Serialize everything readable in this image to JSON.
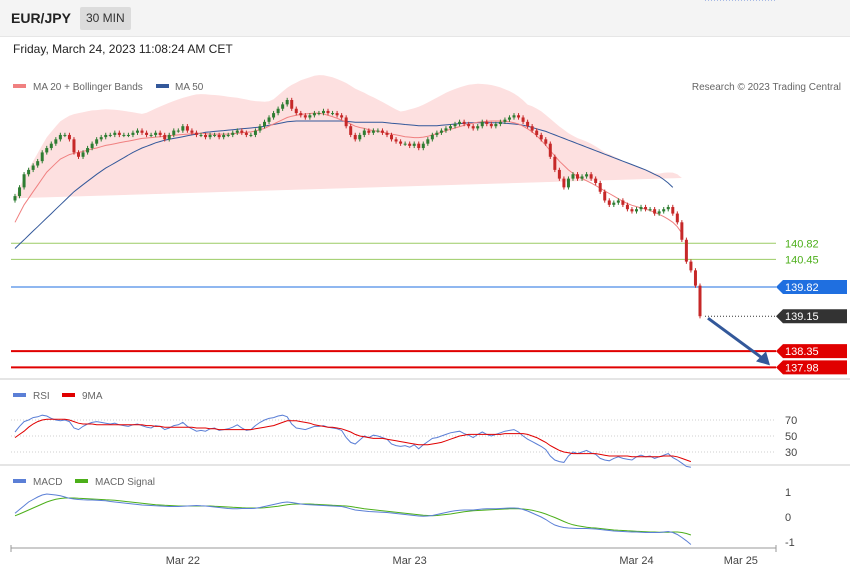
{
  "header": {
    "pair": "EUR/JPY",
    "timeframe": "30 MIN"
  },
  "date_line": "Friday, March 24, 2023 11:08:24 AM CET",
  "credit": "Research © 2023 Trading Central",
  "legend": {
    "main": [
      "MA 20 + Bollinger Bands",
      "MA 50"
    ],
    "rsi": [
      "RSI",
      "9MA"
    ],
    "macd": [
      "MACD",
      "MACD Signal"
    ]
  },
  "colors": {
    "bull": "#2e7d32",
    "bear": "#c62828",
    "ma20": "#f08080",
    "ma50": "#33589a",
    "bband": "#fde0e0",
    "pivot": "#1f6fe0",
    "support": "#e00000",
    "resistance_line": "#9ccc65",
    "resistance_text": "#4caf1a",
    "last": "#333333",
    "rsi": "#5b7fd6",
    "rsi_ma": "#e00000",
    "macd": "#5b7fd6",
    "macd_signal": "#4caf1a"
  },
  "price_levels": [
    {
      "label": "140.82",
      "value": 140.82,
      "kind": "resistance"
    },
    {
      "label": "140.45",
      "value": 140.45,
      "kind": "resistance"
    },
    {
      "label": "139.82",
      "value": 139.82,
      "kind": "pivot"
    },
    {
      "label": "139.15",
      "value": 139.15,
      "kind": "last"
    },
    {
      "label": "138.35",
      "value": 138.35,
      "kind": "support"
    },
    {
      "label": "137.98",
      "value": 137.98,
      "kind": "support"
    }
  ],
  "rsi_levels": [
    "70",
    "50",
    "30"
  ],
  "macd_levels": [
    "1",
    "0",
    "-1"
  ],
  "x_labels": [
    {
      "label": "Mar 22",
      "index": 37
    },
    {
      "label": "Mar 23",
      "index": 87
    },
    {
      "label": "Mar 24",
      "index": 137
    },
    {
      "label": "Mar 25",
      "index": 160
    }
  ],
  "chart_data": {
    "type": "candlestick",
    "title": "EUR/JPY",
    "timeframe": "30 MIN",
    "ylim": [
      137.85,
      144.1
    ],
    "close": [
      141.9,
      142.1,
      142.4,
      142.5,
      142.6,
      142.7,
      142.9,
      143.0,
      143.1,
      143.2,
      143.3,
      143.3,
      143.2,
      142.9,
      142.8,
      142.9,
      143.0,
      143.1,
      143.2,
      143.25,
      143.3,
      143.3,
      143.35,
      143.3,
      143.3,
      143.3,
      143.35,
      143.4,
      143.35,
      143.3,
      143.3,
      143.35,
      143.3,
      143.2,
      143.3,
      143.4,
      143.4,
      143.5,
      143.4,
      143.35,
      143.3,
      143.3,
      143.25,
      143.3,
      143.3,
      143.25,
      143.3,
      143.3,
      143.35,
      143.4,
      143.35,
      143.3,
      143.3,
      143.4,
      143.5,
      143.6,
      143.7,
      143.8,
      143.9,
      144.0,
      144.1,
      143.9,
      143.8,
      143.75,
      143.7,
      143.75,
      143.8,
      143.8,
      143.85,
      143.8,
      143.8,
      143.75,
      143.7,
      143.5,
      143.3,
      143.2,
      143.3,
      143.4,
      143.35,
      143.4,
      143.4,
      143.35,
      143.3,
      143.2,
      143.15,
      143.1,
      143.1,
      143.05,
      143.1,
      143.0,
      143.1,
      143.2,
      143.3,
      143.35,
      143.4,
      143.45,
      143.5,
      143.55,
      143.6,
      143.55,
      143.5,
      143.45,
      143.5,
      143.6,
      143.55,
      143.5,
      143.55,
      143.6,
      143.65,
      143.7,
      143.75,
      143.7,
      143.6,
      143.5,
      143.4,
      143.3,
      143.2,
      143.1,
      142.8,
      142.5,
      142.3,
      142.1,
      142.3,
      142.4,
      142.3,
      142.35,
      142.4,
      142.3,
      142.2,
      142.0,
      141.8,
      141.7,
      141.75,
      141.8,
      141.7,
      141.6,
      141.55,
      141.6,
      141.65,
      141.6,
      141.6,
      141.5,
      141.55,
      141.6,
      141.65,
      141.5,
      141.3,
      140.9,
      140.4,
      140.2,
      139.85,
      139.15
    ],
    "ma20": [
      141.3,
      141.5,
      141.7,
      141.85,
      142.0,
      142.15,
      142.3,
      142.45,
      142.55,
      142.65,
      142.75,
      142.8,
      142.85,
      142.88,
      142.9,
      142.92,
      142.95,
      142.98,
      143.0,
      143.03,
      143.06,
      143.08,
      143.1,
      143.12,
      143.14,
      143.16,
      143.18,
      143.2,
      143.22,
      143.23,
      143.24,
      143.25,
      143.26,
      143.27,
      143.28,
      143.29,
      143.3,
      143.31,
      143.32,
      143.33,
      143.34,
      143.34,
      143.33,
      143.32,
      143.32,
      143.32,
      143.32,
      143.32,
      143.33,
      143.34,
      143.35,
      143.36,
      143.37,
      143.39,
      143.42,
      143.45,
      143.5,
      143.55,
      143.6,
      143.65,
      143.7,
      143.73,
      143.75,
      143.77,
      143.78,
      143.79,
      143.8,
      143.8,
      143.78,
      143.75,
      143.72,
      143.68,
      143.64,
      143.6,
      143.55,
      143.5,
      143.47,
      143.45,
      143.42,
      143.4,
      143.38,
      143.36,
      143.34,
      143.32,
      143.3,
      143.28,
      143.26,
      143.25,
      143.24,
      143.24,
      143.25,
      143.27,
      143.3,
      143.33,
      143.36,
      143.4,
      143.43,
      143.46,
      143.49,
      143.52,
      143.55,
      143.57,
      143.59,
      143.6,
      143.61,
      143.62,
      143.62,
      143.62,
      143.61,
      143.6,
      143.58,
      143.55,
      143.5,
      143.44,
      143.37,
      143.28,
      143.18,
      143.06,
      142.94,
      142.82,
      142.7,
      142.6,
      142.5,
      142.42,
      142.35,
      142.3,
      142.25,
      142.2,
      142.14,
      142.08,
      142.02,
      141.96,
      141.9,
      141.84,
      141.78,
      141.73,
      141.69,
      141.66,
      141.63,
      141.6,
      141.57,
      141.53,
      141.48,
      141.43,
      141.37,
      141.3,
      141.2,
      141.05
    ],
    "ma50": [
      140.7,
      140.8,
      140.9,
      141.0,
      141.1,
      141.2,
      141.3,
      141.4,
      141.5,
      141.6,
      141.7,
      141.8,
      141.9,
      142.0,
      142.08,
      142.16,
      142.24,
      142.32,
      142.4,
      142.47,
      142.54,
      142.6,
      142.66,
      142.72,
      142.78,
      142.84,
      142.9,
      142.95,
      143.0,
      143.04,
      143.08,
      143.12,
      143.15,
      143.18,
      143.2,
      143.22,
      143.24,
      143.26,
      143.28,
      143.3,
      143.32,
      143.34,
      143.36,
      143.37,
      143.38,
      143.39,
      143.4,
      143.41,
      143.42,
      143.43,
      143.44,
      143.45,
      143.46,
      143.47,
      143.48,
      143.5,
      143.52,
      143.54,
      143.56,
      143.58,
      143.6,
      143.61,
      143.62,
      143.62,
      143.62,
      143.62,
      143.62,
      143.62,
      143.62,
      143.62,
      143.62,
      143.62,
      143.62,
      143.61,
      143.6,
      143.59,
      143.59,
      143.59,
      143.59,
      143.59,
      143.59,
      143.59,
      143.58,
      143.57,
      143.56,
      143.55,
      143.54,
      143.53,
      143.52,
      143.51,
      143.51,
      143.51,
      143.51,
      143.51,
      143.52,
      143.53,
      143.54,
      143.55,
      143.56,
      143.57,
      143.58,
      143.58,
      143.58,
      143.58,
      143.58,
      143.58,
      143.58,
      143.58,
      143.57,
      143.56,
      143.55,
      143.54,
      143.52,
      143.5,
      143.47,
      143.44,
      143.41,
      143.38,
      143.34,
      143.3,
      143.26,
      143.22,
      143.18,
      143.14,
      143.1,
      143.06,
      143.02,
      142.98,
      142.94,
      142.9,
      142.86,
      142.82,
      142.78,
      142.74,
      142.7,
      142.66,
      142.62,
      142.58,
      142.54,
      142.5,
      142.45,
      142.4,
      142.35,
      142.28,
      142.2,
      142.1
    ],
    "rsi": [
      55,
      62,
      68,
      70,
      73,
      74,
      76,
      75,
      72,
      70,
      69,
      70,
      68,
      60,
      58,
      62,
      65,
      67,
      68,
      67,
      66,
      65,
      66,
      64,
      63,
      62,
      64,
      65,
      63,
      61,
      60,
      63,
      62,
      58,
      60,
      63,
      64,
      67,
      62,
      59,
      56,
      57,
      56,
      59,
      60,
      57,
      58,
      59,
      61,
      64,
      60,
      57,
      58,
      63,
      67,
      70,
      72,
      73,
      75,
      76,
      74,
      65,
      60,
      59,
      58,
      60,
      62,
      62,
      63,
      61,
      60,
      59,
      57,
      48,
      42,
      40,
      45,
      50,
      48,
      51,
      50,
      48,
      46,
      40,
      38,
      37,
      38,
      36,
      39,
      34,
      39,
      43,
      47,
      48,
      50,
      52,
      54,
      55,
      56,
      53,
      51,
      48,
      52,
      55,
      52,
      50,
      52,
      54,
      56,
      57,
      58,
      55,
      50,
      46,
      43,
      40,
      37,
      33,
      25,
      20,
      18,
      17,
      25,
      30,
      28,
      30,
      32,
      29,
      27,
      22,
      20,
      19,
      22,
      24,
      22,
      21,
      20,
      24,
      26,
      24,
      25,
      22,
      24,
      26,
      28,
      23,
      20,
      16,
      12,
      11
    ],
    "rsi_ma": [
      48,
      52,
      56,
      61,
      65,
      68,
      70,
      71,
      71,
      71,
      71,
      71,
      70,
      68,
      66,
      65,
      65,
      65,
      64,
      64,
      64,
      64,
      64,
      64,
      64,
      64,
      64,
      64,
      64,
      63,
      63,
      62,
      62,
      61,
      61,
      61,
      61,
      61,
      61,
      61,
      60,
      60,
      60,
      59,
      59,
      58,
      58,
      58,
      58,
      58,
      58,
      58,
      58,
      59,
      60,
      61,
      62,
      63,
      65,
      67,
      69,
      69,
      69,
      68,
      67,
      66,
      64,
      63,
      62,
      61,
      61,
      60,
      59,
      57,
      55,
      52,
      50,
      49,
      48,
      47,
      47,
      47,
      46,
      45,
      44,
      43,
      42,
      41,
      40,
      39,
      39,
      39,
      40,
      41,
      42,
      44,
      46,
      48,
      50,
      51,
      52,
      52,
      52,
      52,
      52,
      52,
      52,
      52,
      53,
      53,
      53,
      53,
      53,
      52,
      50,
      48,
      45,
      42,
      38,
      35,
      32,
      30,
      29,
      28,
      28,
      28,
      28,
      28,
      28,
      27,
      26,
      25,
      25,
      25,
      25,
      25,
      24,
      24,
      24,
      24,
      24,
      24,
      24,
      25,
      25,
      25,
      24,
      22,
      20,
      18
    ],
    "macd": [
      0.15,
      0.3,
      0.45,
      0.6,
      0.7,
      0.8,
      0.88,
      0.92,
      0.9,
      0.88,
      0.85,
      0.8,
      0.75,
      0.72,
      0.7,
      0.69,
      0.68,
      0.68,
      0.67,
      0.66,
      0.65,
      0.62,
      0.6,
      0.58,
      0.56,
      0.54,
      0.52,
      0.5,
      0.48,
      0.47,
      0.46,
      0.45,
      0.44,
      0.43,
      0.42,
      0.42,
      0.42,
      0.43,
      0.44,
      0.45,
      0.46,
      0.45,
      0.44,
      0.42,
      0.4,
      0.38,
      0.36,
      0.34,
      0.33,
      0.33,
      0.34,
      0.34,
      0.34,
      0.35,
      0.38,
      0.42,
      0.46,
      0.5,
      0.54,
      0.58,
      0.6,
      0.58,
      0.55,
      0.52,
      0.5,
      0.49,
      0.48,
      0.47,
      0.46,
      0.45,
      0.44,
      0.43,
      0.42,
      0.38,
      0.33,
      0.28,
      0.26,
      0.24,
      0.22,
      0.21,
      0.2,
      0.19,
      0.18,
      0.16,
      0.14,
      0.12,
      0.1,
      0.08,
      0.06,
      0.04,
      0.03,
      0.04,
      0.06,
      0.1,
      0.14,
      0.18,
      0.22,
      0.25,
      0.27,
      0.28,
      0.28,
      0.28,
      0.3,
      0.32,
      0.33,
      0.33,
      0.33,
      0.34,
      0.35,
      0.36,
      0.36,
      0.35,
      0.3,
      0.24,
      0.16,
      0.08,
      0.0,
      -0.1,
      -0.22,
      -0.32,
      -0.38,
      -0.42,
      -0.44,
      -0.45,
      -0.46,
      -0.46,
      -0.46,
      -0.47,
      -0.48,
      -0.5,
      -0.52,
      -0.54,
      -0.56,
      -0.57,
      -0.58,
      -0.59,
      -0.6,
      -0.6,
      -0.61,
      -0.62,
      -0.62,
      -0.62,
      -0.62,
      -0.6,
      -0.58,
      -0.62,
      -0.7,
      -0.82,
      -0.95,
      -1.1
    ],
    "macd_signal": [
      0.05,
      0.12,
      0.2,
      0.28,
      0.36,
      0.44,
      0.52,
      0.6,
      0.66,
      0.71,
      0.74,
      0.76,
      0.76,
      0.76,
      0.75,
      0.74,
      0.73,
      0.72,
      0.71,
      0.7,
      0.69,
      0.68,
      0.67,
      0.65,
      0.63,
      0.61,
      0.59,
      0.57,
      0.55,
      0.53,
      0.51,
      0.49,
      0.48,
      0.47,
      0.46,
      0.45,
      0.44,
      0.44,
      0.44,
      0.44,
      0.44,
      0.44,
      0.44,
      0.44,
      0.43,
      0.42,
      0.41,
      0.4,
      0.39,
      0.38,
      0.37,
      0.36,
      0.36,
      0.36,
      0.36,
      0.37,
      0.39,
      0.41,
      0.43,
      0.46,
      0.49,
      0.51,
      0.52,
      0.52,
      0.52,
      0.52,
      0.51,
      0.5,
      0.49,
      0.48,
      0.47,
      0.46,
      0.45,
      0.44,
      0.42,
      0.39,
      0.36,
      0.33,
      0.31,
      0.29,
      0.27,
      0.25,
      0.23,
      0.21,
      0.19,
      0.17,
      0.15,
      0.13,
      0.11,
      0.09,
      0.07,
      0.06,
      0.05,
      0.06,
      0.08,
      0.1,
      0.12,
      0.15,
      0.18,
      0.21,
      0.23,
      0.25,
      0.26,
      0.27,
      0.28,
      0.29,
      0.3,
      0.31,
      0.32,
      0.33,
      0.33,
      0.33,
      0.32,
      0.3,
      0.27,
      0.23,
      0.18,
      0.12,
      0.05,
      -0.02,
      -0.1,
      -0.18,
      -0.25,
      -0.31,
      -0.35,
      -0.38,
      -0.41,
      -0.43,
      -0.44,
      -0.46,
      -0.48,
      -0.5,
      -0.52,
      -0.53,
      -0.54,
      -0.55,
      -0.56,
      -0.57,
      -0.58,
      -0.59,
      -0.6,
      -0.6,
      -0.61,
      -0.61,
      -0.61,
      -0.6,
      -0.6,
      -0.62,
      -0.66,
      -0.72
    ],
    "rsi_ylim": [
      0,
      100
    ],
    "macd_ylim": [
      -1.2,
      1.3
    ]
  }
}
